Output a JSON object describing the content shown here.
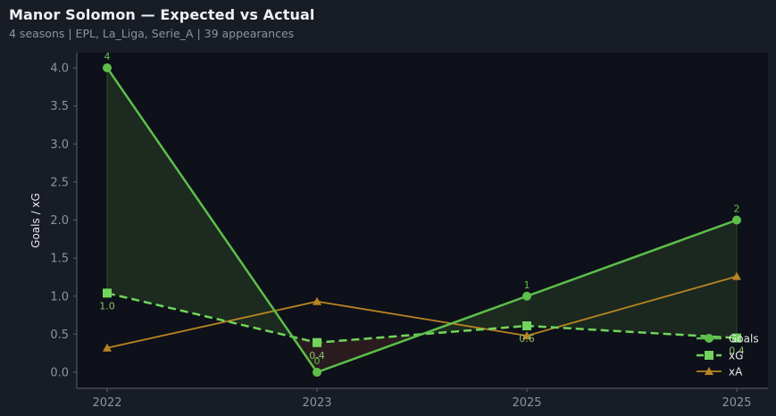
{
  "header": {
    "title": "Manor Solomon — Expected vs Actual",
    "subtitle": "4 seasons | EPL, La_Liga, Serie_A | 39 appearances"
  },
  "colors": {
    "background": "#181c25",
    "plot_bg": "#0e1119",
    "goals": "#5dbf4a",
    "xg": "#72d45c",
    "xa": "#b88422",
    "fill_over": "#1c2a20",
    "fill_under": "#2a1c1e",
    "axis": "#5a5f69"
  },
  "chart_data": {
    "type": "line",
    "title": "Manor Solomon — Expected vs Actual",
    "subtitle": "4 seasons | EPL, La_Liga, Serie_A | 39 appearances",
    "xlabel": "",
    "ylabel": "Goals / xG",
    "categories": [
      "2022",
      "2023",
      "2025",
      "2025"
    ],
    "ylim": [
      -0.2,
      4.2
    ],
    "yticks": [
      0.0,
      0.5,
      1.0,
      1.5,
      2.0,
      2.5,
      3.0,
      3.5,
      4.0
    ],
    "ytick_labels": [
      "0.0",
      "0.5",
      "1.0",
      "1.5",
      "2.0",
      "2.5",
      "3.0",
      "3.5",
      "4.0"
    ],
    "grid": false,
    "legend_position": "lower right",
    "series": [
      {
        "name": "Goals",
        "values": [
          4,
          0,
          1,
          2
        ],
        "labels": [
          "4",
          "0",
          "1",
          "2"
        ],
        "style": "solid",
        "marker": "circle"
      },
      {
        "name": "xG",
        "values": [
          1.04,
          0.39,
          0.61,
          0.45
        ],
        "labels": [
          "1.0",
          "0.4",
          "0.6",
          "0.4"
        ],
        "style": "dashed",
        "marker": "square"
      },
      {
        "name": "xA",
        "values": [
          0.32,
          0.93,
          0.48,
          1.26
        ],
        "style": "solid",
        "marker": "triangle"
      }
    ],
    "annotations": "Shaded area between Goals and xG: green where Goals > xG, red where Goals < xG"
  }
}
